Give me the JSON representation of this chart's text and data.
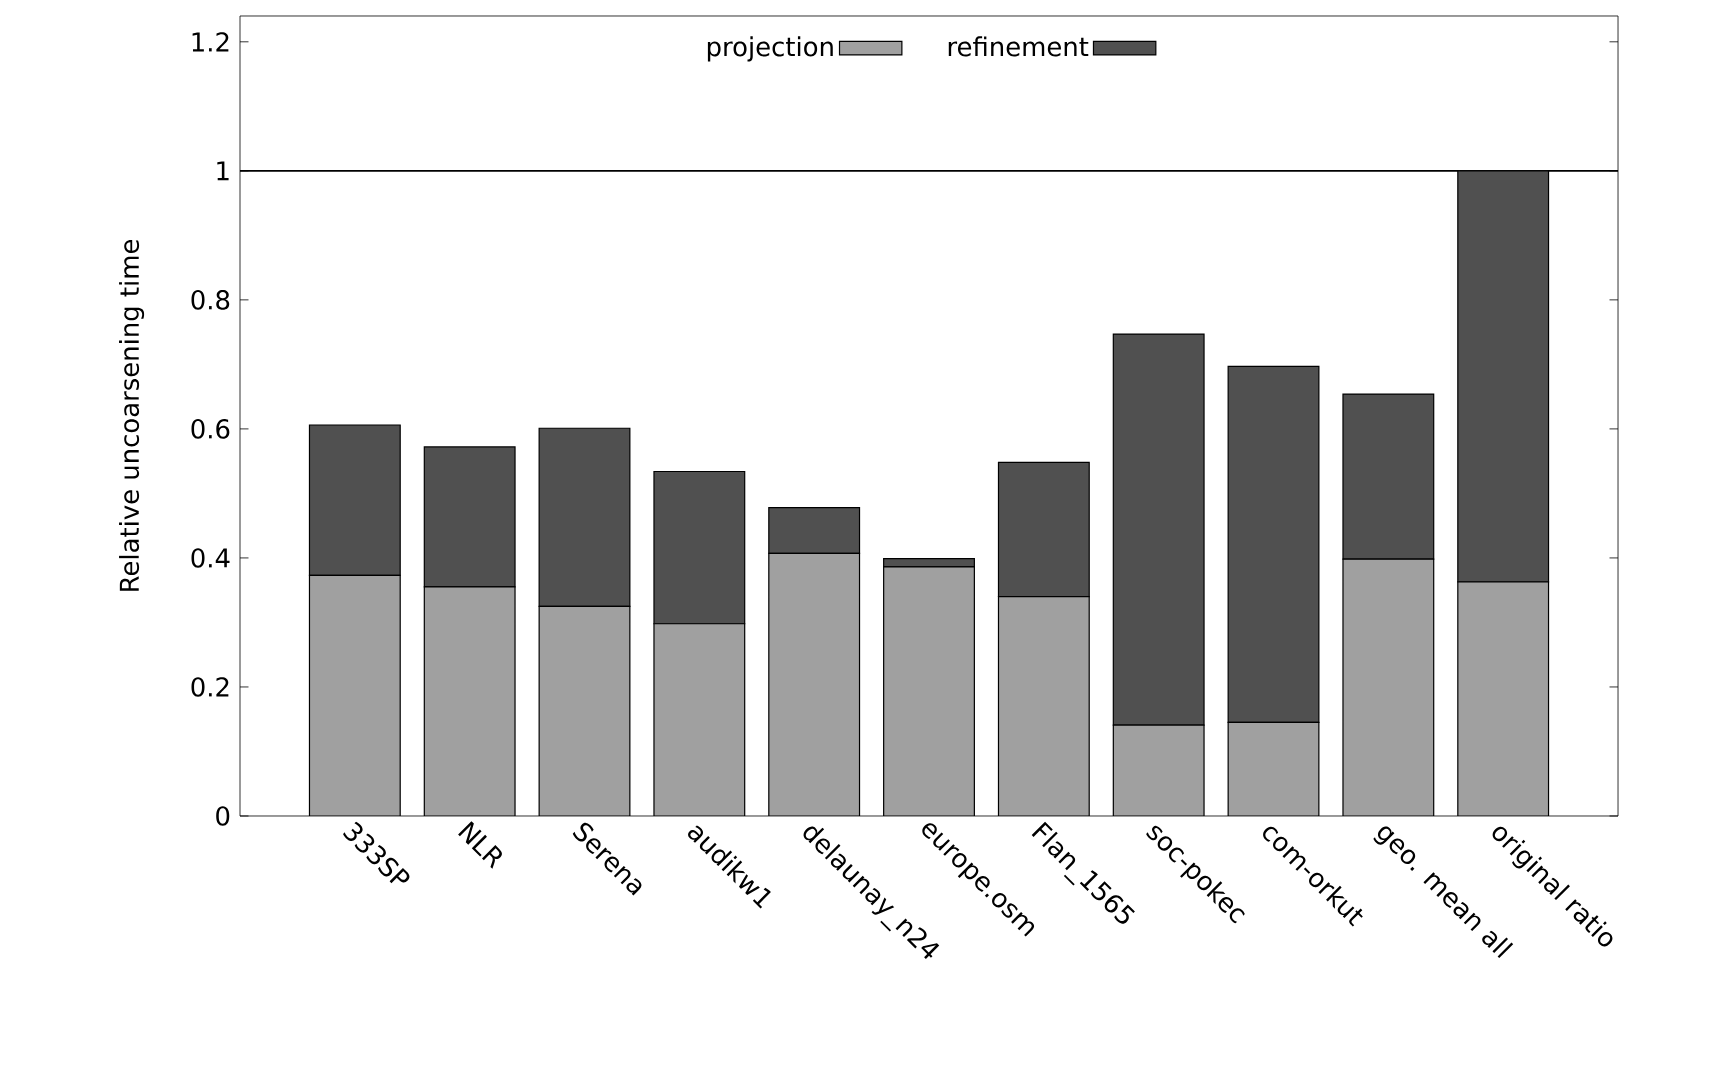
{
  "chart_data": {
    "type": "bar",
    "stacked": true,
    "ylabel": "Relative uncoarsening time",
    "categories": [
      "333SP",
      "NLR",
      "Serena",
      "audikw1",
      "delaunay_n24",
      "europe.osm",
      "Flan_1565",
      "soc-pokec",
      "com-orkut",
      "geo. mean all",
      "original ratio"
    ],
    "series": [
      {
        "name": "projection",
        "color": "#a0a0a0",
        "values": [
          0.373,
          0.355,
          0.325,
          0.298,
          0.407,
          0.386,
          0.34,
          0.141,
          0.145,
          0.398,
          0.363
        ]
      },
      {
        "name": "refinement",
        "color": "#505050",
        "values": [
          0.233,
          0.217,
          0.276,
          0.236,
          0.071,
          0.013,
          0.208,
          0.606,
          0.552,
          0.256,
          0.637
        ]
      }
    ],
    "ylim": [
      0,
      1.24
    ],
    "yticks": [
      0,
      0.2,
      0.4,
      0.6,
      0.8,
      1,
      1.2
    ],
    "ref_lines": [
      {
        "axis": "y",
        "value": 1,
        "color": "#000000"
      }
    ],
    "legend": "top",
    "grid": false
  }
}
